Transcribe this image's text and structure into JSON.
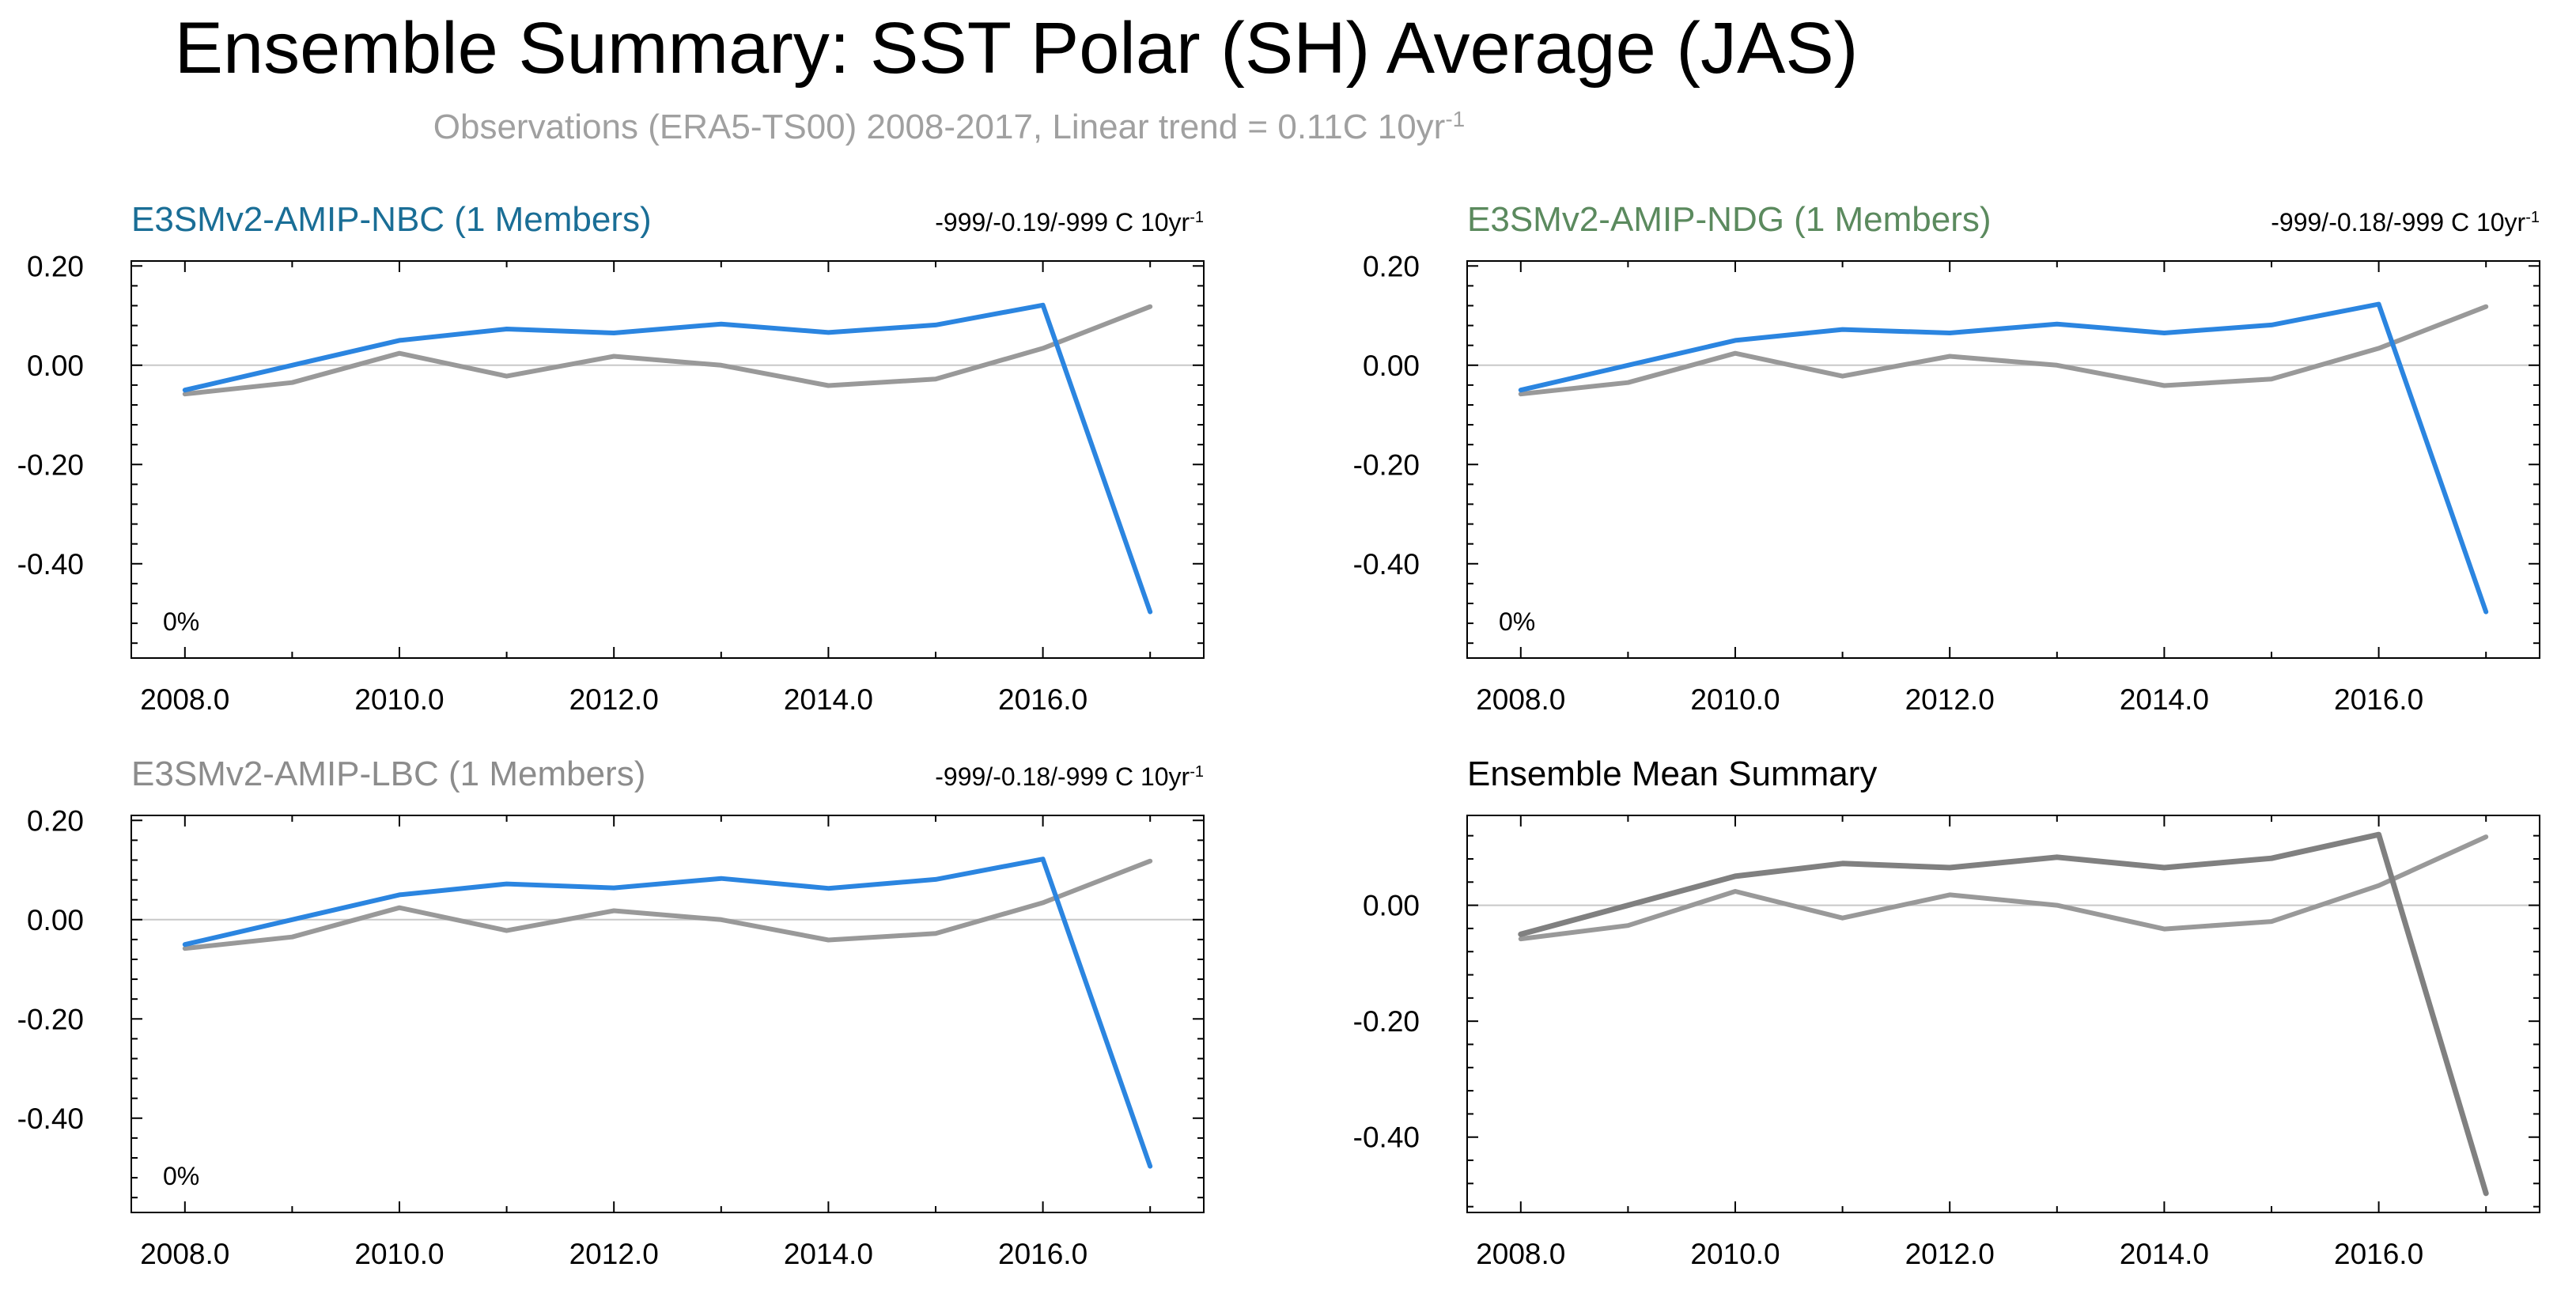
{
  "title": "Ensemble Summary: SST Polar (SH) Average (JAS)",
  "subtitle": {
    "text": "Observations (ERA5-TS00) 2008-2017, Linear trend = 0.11C 10yr",
    "superscript": "-1"
  },
  "colors": {
    "model_line": "#2b85e0",
    "observation_line": "#999999",
    "mean_model_line": "#808080",
    "title_nbc": "#1a6e96",
    "title_ndg": "#5b8a5e",
    "title_lbc": "#8c8c8c",
    "title_mean": "#000000"
  },
  "panels": [
    {
      "title": "E3SMv2-AMIP-NBC (1 Members)",
      "title_color": "#1a6e96",
      "stat_text": "-999/-0.19/-999 C 10yr",
      "stat_sup": "-1",
      "corner_label": "0%"
    },
    {
      "title": "E3SMv2-AMIP-NDG (1 Members)",
      "title_color": "#5b8a5e",
      "stat_text": "-999/-0.18/-999 C 10yr",
      "stat_sup": "-1",
      "corner_label": "0%"
    },
    {
      "title": "E3SMv2-AMIP-LBC (1 Members)",
      "title_color": "#8c8c8c",
      "stat_text": "-999/-0.18/-999 C 10yr",
      "stat_sup": "-1",
      "corner_label": "0%"
    },
    {
      "title": "Ensemble Mean Summary",
      "title_color": "#000000",
      "stat_text": "",
      "stat_sup": "",
      "corner_label": ""
    }
  ],
  "chart_data": [
    {
      "type": "line",
      "title": "E3SMv2-AMIP-NBC (1 Members)",
      "xlim": [
        2007.5,
        2017.5
      ],
      "ylim": [
        -0.59,
        0.21
      ],
      "x_ticks": [
        "2008.0",
        "2010.0",
        "2012.0",
        "2014.0",
        "2016.0"
      ],
      "y_ticks": [
        "0.20",
        "0.00",
        "-0.20",
        "-0.40"
      ],
      "x": [
        2008,
        2009,
        2010,
        2011,
        2012,
        2013,
        2014,
        2015,
        2016,
        2017
      ],
      "series": [
        {
          "values": [
            -0.05,
            0.0,
            0.05,
            0.073,
            0.065,
            0.083,
            0.066,
            0.081,
            0.121,
            -0.497
          ]
        },
        {
          "values": [
            -0.058,
            -0.035,
            0.024,
            -0.022,
            0.018,
            0.0,
            -0.041,
            -0.028,
            0.034,
            0.118
          ]
        }
      ]
    },
    {
      "type": "line",
      "title": "E3SMv2-AMIP-NDG (1 Members)",
      "xlim": [
        2007.5,
        2017.5
      ],
      "ylim": [
        -0.59,
        0.21
      ],
      "x_ticks": [
        "2008.0",
        "2010.0",
        "2012.0",
        "2014.0",
        "2016.0"
      ],
      "y_ticks": [
        "0.20",
        "0.00",
        "-0.20",
        "-0.40"
      ],
      "x": [
        2008,
        2009,
        2010,
        2011,
        2012,
        2013,
        2014,
        2015,
        2016,
        2017
      ],
      "series": [
        {
          "values": [
            -0.05,
            0.0,
            0.05,
            0.072,
            0.065,
            0.083,
            0.065,
            0.081,
            0.123,
            -0.497
          ]
        },
        {
          "values": [
            -0.058,
            -0.035,
            0.024,
            -0.022,
            0.018,
            0.0,
            -0.041,
            -0.028,
            0.034,
            0.118
          ]
        }
      ]
    },
    {
      "type": "line",
      "title": "E3SMv2-AMIP-LBC (1 Members)",
      "xlim": [
        2007.5,
        2017.5
      ],
      "ylim": [
        -0.59,
        0.21
      ],
      "x_ticks": [
        "2008.0",
        "2010.0",
        "2012.0",
        "2014.0",
        "2016.0"
      ],
      "y_ticks": [
        "0.20",
        "0.00",
        "-0.20",
        "-0.40"
      ],
      "x": [
        2008,
        2009,
        2010,
        2011,
        2012,
        2013,
        2014,
        2015,
        2016,
        2017
      ],
      "series": [
        {
          "values": [
            -0.05,
            0.0,
            0.05,
            0.072,
            0.064,
            0.083,
            0.063,
            0.081,
            0.122,
            -0.497
          ]
        },
        {
          "values": [
            -0.058,
            -0.035,
            0.024,
            -0.022,
            0.018,
            0.0,
            -0.041,
            -0.028,
            0.034,
            0.118
          ]
        }
      ]
    },
    {
      "type": "line",
      "title": "Ensemble Mean Summary",
      "xlim": [
        2007.5,
        2017.5
      ],
      "ylim": [
        -0.53,
        0.155
      ],
      "x_ticks": [
        "2008.0",
        "2010.0",
        "2012.0",
        "2014.0",
        "2016.0"
      ],
      "y_ticks": [
        "0.00",
        "-0.20",
        "-0.40"
      ],
      "x": [
        2008,
        2009,
        2010,
        2011,
        2012,
        2013,
        2014,
        2015,
        2016,
        2017
      ],
      "series": [
        {
          "values": [
            -0.05,
            0.0,
            0.05,
            0.072,
            0.065,
            0.083,
            0.065,
            0.081,
            0.122,
            -0.497
          ]
        },
        {
          "values": [
            -0.058,
            -0.035,
            0.024,
            -0.022,
            0.018,
            0.0,
            -0.041,
            -0.028,
            0.034,
            0.118
          ]
        }
      ]
    }
  ]
}
